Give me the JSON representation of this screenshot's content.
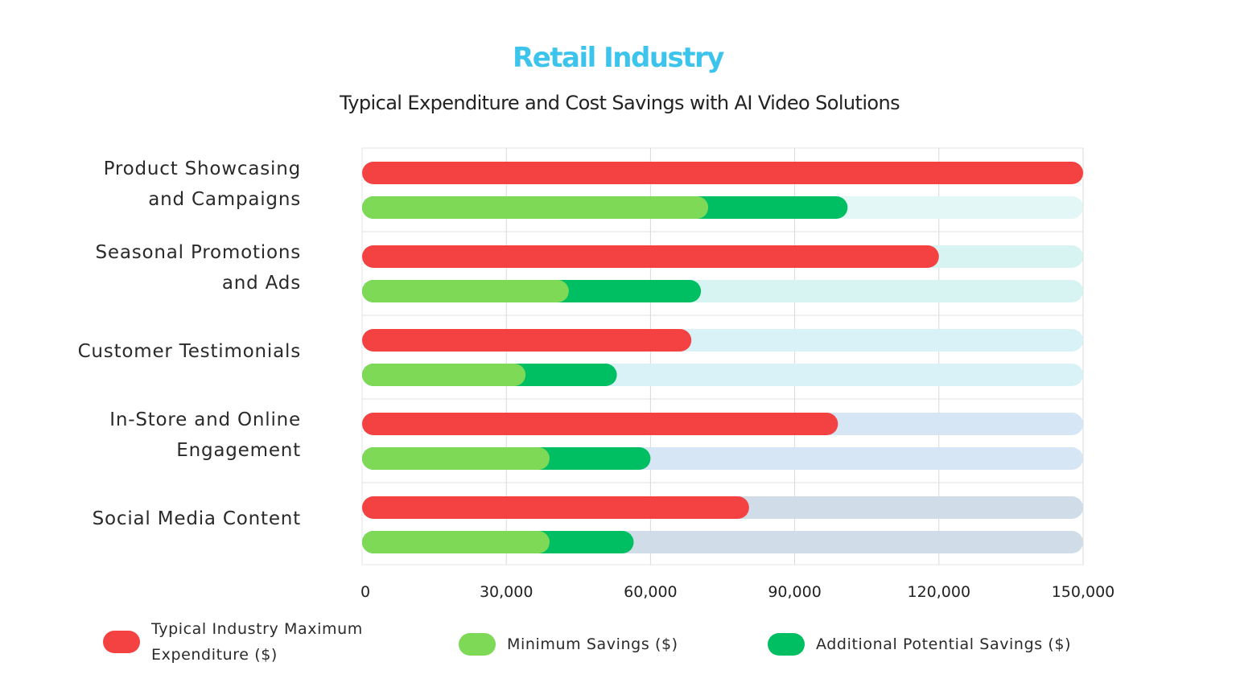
{
  "chart_data": {
    "type": "bar",
    "orientation": "horizontal",
    "title": "Retail Industry",
    "subtitle": "Typical Expenditure and Cost Savings with AI Video Solutions",
    "categories": [
      [
        "Product Showcasing",
        "and Campaigns"
      ],
      [
        "Seasonal Promotions",
        "and Ads"
      ],
      [
        "Customer Testimonials"
      ],
      [
        "In-Store and Online",
        "Engagement"
      ],
      [
        "Social Media Content"
      ]
    ],
    "series": [
      {
        "name": "Typical Industry Maximum Expenditure ($)",
        "values": [
          150000,
          120000,
          68500,
          99000,
          80500
        ]
      },
      {
        "name": "Minimum Savings ($)",
        "values": [
          72000,
          43000,
          34000,
          39000,
          39000
        ]
      },
      {
        "name": "Additional Potential Savings ($)",
        "values": [
          29000,
          27500,
          19000,
          21000,
          17500
        ]
      }
    ],
    "stacked_groups": [
      [
        "Typical Industry Maximum Expenditure ($)"
      ],
      [
        "Minimum Savings ($)",
        "Additional Potential Savings ($)"
      ]
    ],
    "xlim": [
      0,
      150000
    ],
    "xticks": [
      "0",
      "30,000",
      "60,000",
      "90,000",
      "120,000",
      "150,000"
    ],
    "xtick_values": [
      0,
      30000,
      60000,
      90000,
      120000,
      150000
    ],
    "grid": true,
    "legend_position": "bottom"
  },
  "legend": {
    "items": [
      {
        "lines": [
          "Typical Industry Maximum",
          "Expenditure ($)"
        ],
        "color": "#f44242"
      },
      {
        "lines": [
          "Minimum Savings ($)"
        ],
        "color": "#7ed957"
      },
      {
        "lines": [
          "Additional Potential Savings ($)"
        ],
        "color": "#00bf63"
      }
    ]
  },
  "colors": {
    "expenditure": "#f44242",
    "minimum_savings": "#7ed957",
    "additional_savings": "#00bf63",
    "title": "#3cc4ec",
    "track_tints": [
      "#e2f7f6",
      "#d7f4f3",
      "#d8f2f8",
      "#d6e6f4",
      "#d0dde9"
    ]
  }
}
